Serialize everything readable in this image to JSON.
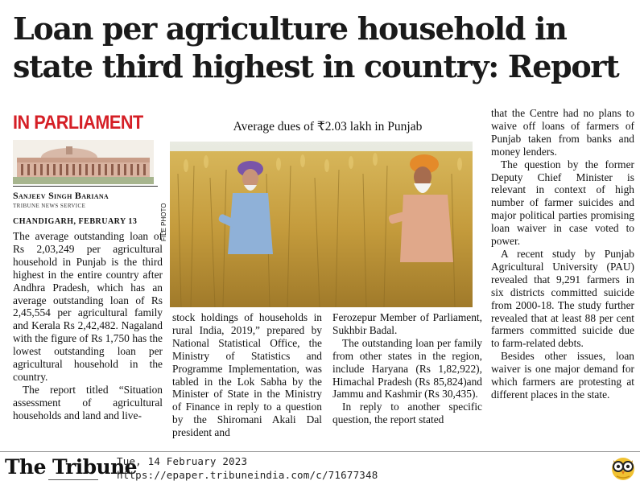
{
  "headline": "Loan per agriculture household in state third highest in country: Report",
  "section_tag": "IN PARLIAMENT",
  "byline": "Sanjeev Singh Bariana",
  "service": "TRIBUNE NEWS SERVICE",
  "dateline": "CHANDIGARH, FEBRUARY 13",
  "photo": {
    "caption": "Average dues of ₹2.03 lakh in Punjab",
    "credit": "FILE PHOTO"
  },
  "columns": {
    "col1": [
      "The average outstanding loan of Rs 2,03,249 per agricultural household in Punjab is the third highest in the entire country after Andhra Pradesh, which has an average outstanding loan of Rs 2,45,554 per agricultural family and Kerala Rs 2,42,482. Nagaland with the figure of Rs 1,750 has the lowest outstanding loan per agricultural household in the country.",
      "The report titled “Situation assessment of agricultural households and land and live-"
    ],
    "col2": [
      "stock holdings of households in rural India, 2019,” prepared by National Statistical Office, the Ministry of Statistics and Programme Implementation, was tabled in the Lok Sabha by the Minister of State in the Ministry of Finance in reply to a question by the Shiromani Akali Dal president and"
    ],
    "col3": [
      "Ferozepur Member of Parliament, Sukhbir Badal.",
      "The outstanding loan per family from other states in the region, include Haryana (Rs 1,82,922), Himachal Pradesh (Rs 85,824)and Jammu and Kashmir (Rs 30,435).",
      "In reply to another specific question, the report stated"
    ],
    "col4": [
      "that the Centre had no plans to waive off loans of farmers of Punjab taken from banks and money lenders.",
      "The question by the former Deputy Chief Minister is relevant in context of high number of farmer suicides and major political parties promising loan waiver in case voted to power.",
      "A recent study by Punjab Agricultural University (PAU) revealed that 9,291 farmers in six districts committed suicide from 2000-18. The study further revealed that at least 88 per cent farmers committed suicide due to farm-related debts.",
      "Besides other issues, loan waiver is one major demand for which farmers are protesting at different places in the state."
    ]
  },
  "footer": {
    "logo": "The Tribune",
    "date": "Tue, 14 February 2023",
    "url": "https://epaper.tribuneindia.com/c/71677348"
  },
  "colors": {
    "section_tag": "#d51f26",
    "wheat": "#c9a544",
    "sky": "#eef0e8"
  },
  "icons": [
    "parliament-building-illustration",
    "owl-icon"
  ]
}
